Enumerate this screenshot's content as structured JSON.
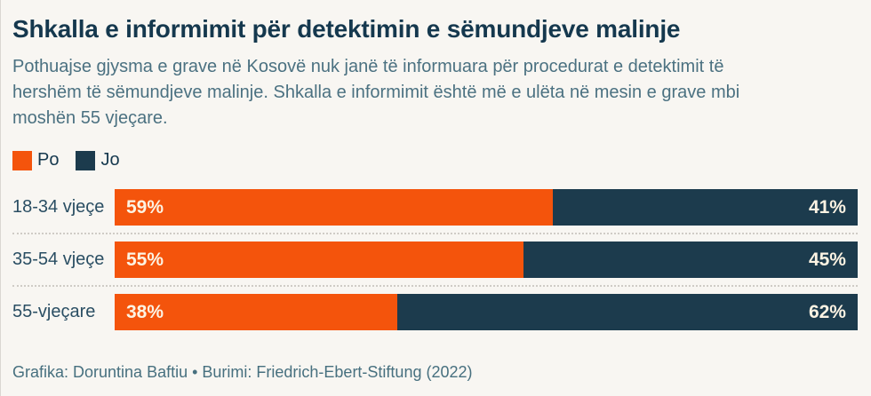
{
  "title": "Shkalla e informimit për detektimin e sëmundjeve malinje",
  "subtitle_lines": [
    "Pothuajse gjysma e grave në Kosovë nuk janë të informuara për procedurat e detektimit të",
    "hershëm të sëmundjeve malinje. Shkalla e informimit është më e ulëta në mesin e grave mbi",
    "moshën 55 vjeçare."
  ],
  "legend": {
    "items": [
      {
        "label": "Po",
        "color": "#f4540c"
      },
      {
        "label": "Jo",
        "color": "#1c3b4d"
      }
    ]
  },
  "footer": "Grafika: Doruntina Baftiu • Burimi: Friedrich-Ebert-Stiftung (2022)",
  "colors": {
    "background": "#f8f6f2",
    "accent_po": "#f4540c",
    "accent_jo": "#1c3b4d",
    "title_text": "#15384e",
    "body_text": "#4b7181",
    "label_text": "#2a4e63",
    "bar_value_text": "#fcf3e3",
    "divider": "#cfccc6",
    "footer_text": "#47707f"
  },
  "chart_data": {
    "type": "bar",
    "orientation": "horizontal",
    "stacked": true,
    "unit": "%",
    "xlim": [
      0,
      100
    ],
    "grid": false,
    "legend_position": "top-left",
    "categories": [
      "18-34 vjeçe",
      "35-54 vjeçe",
      "55-vjeçare"
    ],
    "series": [
      {
        "name": "Po",
        "color": "#f4540c",
        "values": [
          59,
          55,
          38
        ],
        "labels": [
          "59%",
          "55%",
          "38%"
        ]
      },
      {
        "name": "Jo",
        "color": "#1c3b4d",
        "values": [
          41,
          45,
          62
        ],
        "labels": [
          "41%",
          "45%",
          "62%"
        ]
      }
    ]
  }
}
